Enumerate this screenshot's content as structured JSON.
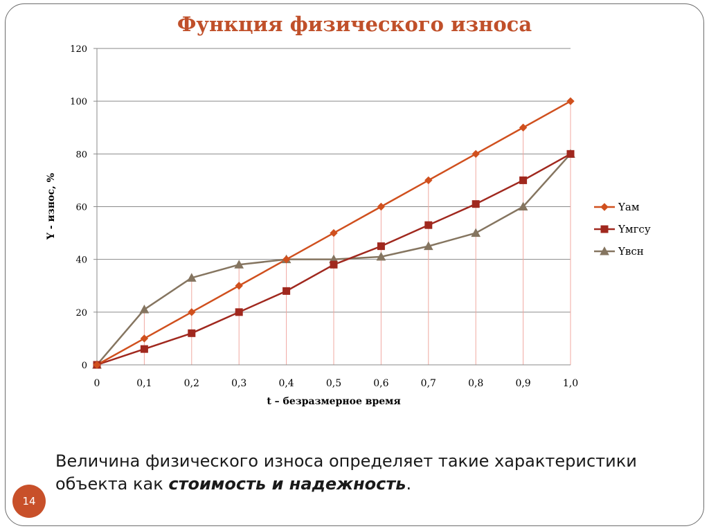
{
  "slide": {
    "title": "Функция физического износа",
    "caption_prefix": "Величина физического износа определяет такие характеристики объекта как ",
    "caption_emphasis": "стоимость и надежность",
    "caption_suffix": ".",
    "page_number": "14"
  },
  "colors": {
    "accent": "#c8502a",
    "series_am": "#d0501e",
    "series_mgsu": "#a0281e",
    "series_vsn": "#857560",
    "droplines": "#f0a8a0"
  },
  "chart_data": {
    "type": "line",
    "title": "",
    "xlabel": "t – безразмерное время",
    "ylabel": "Y - износ, %",
    "categories": [
      "0",
      "0,1",
      "0,2",
      "0,3",
      "0,4",
      "0,5",
      "0,6",
      "0,7",
      "0,8",
      "0,9",
      "1,0"
    ],
    "x": [
      0,
      0.1,
      0.2,
      0.3,
      0.4,
      0.5,
      0.6,
      0.7,
      0.8,
      0.9,
      1.0
    ],
    "ylim": [
      0,
      120
    ],
    "yticks": [
      0,
      20,
      40,
      60,
      80,
      100,
      120
    ],
    "grid": "horizontal",
    "droplines": true,
    "legend_position": "right",
    "series": [
      {
        "name": "Yам",
        "marker": "diamond",
        "values": [
          0,
          10,
          20,
          30,
          40,
          50,
          60,
          70,
          80,
          90,
          100
        ]
      },
      {
        "name": "Yмгсу",
        "marker": "square",
        "values": [
          0,
          6,
          12,
          20,
          28,
          38,
          45,
          53,
          61,
          70,
          80
        ]
      },
      {
        "name": "Yвсн",
        "marker": "triangle",
        "values": [
          0,
          21,
          33,
          38,
          40,
          40,
          41,
          45,
          50,
          60,
          80
        ]
      }
    ]
  }
}
